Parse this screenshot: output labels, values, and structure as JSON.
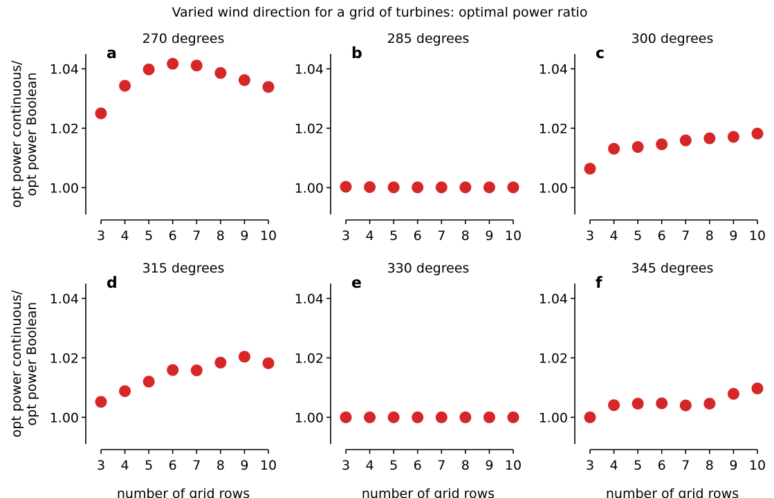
{
  "figure_title": "Varied wind direction for a grid of turbines: optimal power ratio",
  "marker_color": "#d62728",
  "chart_data": [
    {
      "type": "scatter",
      "letter": "a",
      "title": "270 degrees",
      "x": [
        3,
        4,
        5,
        6,
        7,
        8,
        9,
        10
      ],
      "y": [
        1.025,
        1.0343,
        1.0398,
        1.0417,
        1.0411,
        1.0386,
        1.0362,
        1.0339
      ],
      "xlabel": "",
      "ylabel": "opt power continuous/\nopt power Boolean",
      "xticks": [
        3,
        4,
        5,
        6,
        7,
        8,
        9,
        10
      ],
      "yticks": [
        1.0,
        1.02,
        1.04
      ],
      "ylim": [
        0.991,
        1.045
      ]
    },
    {
      "type": "scatter",
      "letter": "b",
      "title": "285 degrees",
      "x": [
        3,
        4,
        5,
        6,
        7,
        8,
        9,
        10
      ],
      "y": [
        1.0003,
        1.0002,
        1.0001,
        1.0001,
        1.0001,
        1.0001,
        1.0001,
        1.0001
      ],
      "xlabel": "",
      "ylabel": "",
      "xticks": [
        3,
        4,
        5,
        6,
        7,
        8,
        9,
        10
      ],
      "yticks": [
        1.0,
        1.02,
        1.04
      ],
      "ylim": [
        0.991,
        1.045
      ]
    },
    {
      "type": "scatter",
      "letter": "c",
      "title": "300 degrees",
      "x": [
        3,
        4,
        5,
        6,
        7,
        8,
        9,
        10
      ],
      "y": [
        1.0064,
        1.0131,
        1.0137,
        1.0146,
        1.0159,
        1.0166,
        1.0171,
        1.0182
      ],
      "xlabel": "",
      "ylabel": "",
      "xticks": [
        3,
        4,
        5,
        6,
        7,
        8,
        9,
        10
      ],
      "yticks": [
        1.0,
        1.02,
        1.04
      ],
      "ylim": [
        0.991,
        1.045
      ]
    },
    {
      "type": "scatter",
      "letter": "d",
      "title": "315 degrees",
      "x": [
        3,
        4,
        5,
        6,
        7,
        8,
        9,
        10
      ],
      "y": [
        1.0052,
        1.0088,
        1.012,
        1.0159,
        1.0158,
        1.0184,
        1.0204,
        1.0182
      ],
      "xlabel": "number of grid rows",
      "ylabel": "opt power continuous/\nopt power Boolean",
      "xticks": [
        3,
        4,
        5,
        6,
        7,
        8,
        9,
        10
      ],
      "yticks": [
        1.0,
        1.02,
        1.04
      ],
      "ylim": [
        0.991,
        1.045
      ]
    },
    {
      "type": "scatter",
      "letter": "e",
      "title": "330 degrees",
      "x": [
        3,
        4,
        5,
        6,
        7,
        8,
        9,
        10
      ],
      "y": [
        1.0,
        1.0,
        1.0,
        1.0,
        1.0,
        1.0,
        1.0,
        1.0
      ],
      "xlabel": "number of grid rows",
      "ylabel": "",
      "xticks": [
        3,
        4,
        5,
        6,
        7,
        8,
        9,
        10
      ],
      "yticks": [
        1.0,
        1.02,
        1.04
      ],
      "ylim": [
        0.991,
        1.045
      ]
    },
    {
      "type": "scatter",
      "letter": "f",
      "title": "345 degrees",
      "x": [
        3,
        4,
        5,
        6,
        7,
        8,
        9,
        10
      ],
      "y": [
        1.0,
        1.0041,
        1.0046,
        1.0047,
        1.004,
        1.0046,
        1.0079,
        1.0097
      ],
      "xlabel": "number of grid rows",
      "ylabel": "",
      "xticks": [
        3,
        4,
        5,
        6,
        7,
        8,
        9,
        10
      ],
      "yticks": [
        1.0,
        1.02,
        1.04
      ],
      "ylim": [
        0.991,
        1.045
      ]
    }
  ]
}
